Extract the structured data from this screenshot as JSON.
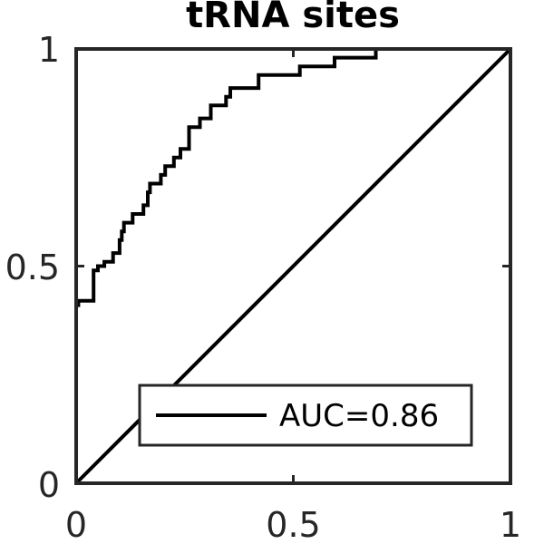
{
  "chart_data": {
    "type": "line",
    "title": "tRNA sites",
    "xlabel": "",
    "ylabel": "",
    "xlim": [
      0,
      1
    ],
    "ylim": [
      0,
      1
    ],
    "xticks": [
      "0",
      "0.5",
      "1"
    ],
    "yticks": [
      "0",
      "0.5",
      "1"
    ],
    "grid": false,
    "legend_position": "bottom-right",
    "series": [
      {
        "name": "AUC=0.86",
        "color": "#000000",
        "x": [
          0,
          0,
          0.005,
          0.005,
          0.04,
          0.04,
          0.05,
          0.05,
          0.065,
          0.065,
          0.085,
          0.085,
          0.1,
          0.1,
          0.105,
          0.105,
          0.11,
          0.11,
          0.13,
          0.13,
          0.155,
          0.155,
          0.165,
          0.165,
          0.17,
          0.17,
          0.195,
          0.195,
          0.205,
          0.205,
          0.225,
          0.225,
          0.24,
          0.24,
          0.26,
          0.26,
          0.27,
          0.27,
          0.285,
          0.285,
          0.31,
          0.31,
          0.345,
          0.345,
          0.355,
          0.355,
          0.36,
          0.36,
          0.42,
          0.42,
          0.43,
          0.43,
          0.515,
          0.515,
          0.595,
          0.595,
          0.69,
          0.69,
          1
        ],
        "y": [
          0.4,
          0.41,
          0.41,
          0.42,
          0.42,
          0.49,
          0.49,
          0.5,
          0.5,
          0.51,
          0.51,
          0.53,
          0.53,
          0.56,
          0.56,
          0.58,
          0.58,
          0.6,
          0.6,
          0.62,
          0.62,
          0.64,
          0.64,
          0.67,
          0.67,
          0.69,
          0.69,
          0.71,
          0.71,
          0.73,
          0.73,
          0.75,
          0.75,
          0.77,
          0.77,
          0.82,
          0.82,
          0.82,
          0.82,
          0.84,
          0.84,
          0.87,
          0.87,
          0.89,
          0.89,
          0.91,
          0.91,
          0.91,
          0.91,
          0.94,
          0.94,
          0.94,
          0.94,
          0.96,
          0.96,
          0.98,
          0.98,
          1,
          1
        ]
      },
      {
        "name": "",
        "color": "#000000",
        "x": [
          0,
          1
        ],
        "y": [
          0,
          1
        ]
      }
    ]
  }
}
